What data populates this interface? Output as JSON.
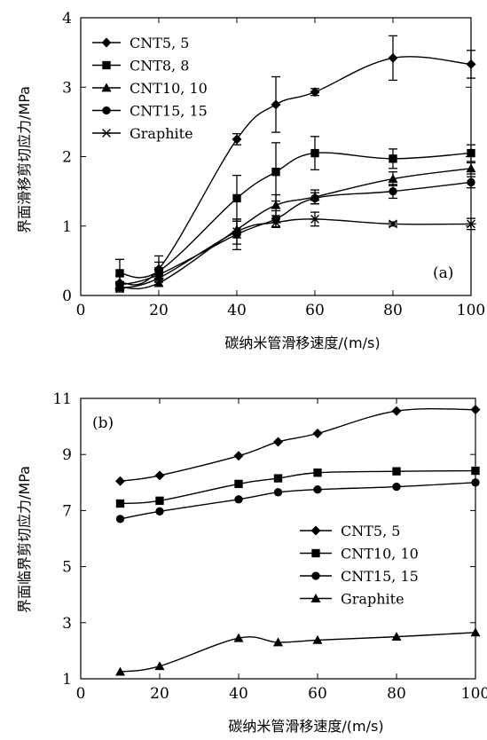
{
  "chart_data": [
    {
      "type": "line",
      "panel_label": "(a)",
      "xlabel": "碳纳米管滑移速度/(m/s)",
      "ylabel": "界面滑移剪切应力/MPa",
      "xlim": [
        0,
        100
      ],
      "ylim": [
        0,
        4
      ],
      "xticks": [
        0,
        20,
        40,
        60,
        80,
        100
      ],
      "yticks": [
        0,
        1,
        2,
        3,
        4
      ],
      "legend_position": "top-left",
      "series": [
        {
          "name": "CNT5, 5",
          "marker": "diamond",
          "x": [
            10,
            20,
            40,
            50,
            60,
            80,
            100
          ],
          "y": [
            0.18,
            0.38,
            2.25,
            2.75,
            2.93,
            3.42,
            3.33
          ],
          "err": [
            0.1,
            0.1,
            0.08,
            0.4,
            0.05,
            0.32,
            0.2
          ]
        },
        {
          "name": "CNT8, 8",
          "marker": "square",
          "x": [
            10,
            20,
            40,
            50,
            60,
            80,
            100
          ],
          "y": [
            0.32,
            0.35,
            1.4,
            1.78,
            2.05,
            1.97,
            2.05
          ],
          "err": [
            0.2,
            0.22,
            0.33,
            0.42,
            0.24,
            0.14,
            0.12
          ]
        },
        {
          "name": "CNT10, 10",
          "marker": "triangle",
          "x": [
            10,
            20,
            40,
            50,
            60,
            80,
            100
          ],
          "y": [
            0.12,
            0.18,
            0.95,
            1.3,
            1.42,
            1.68,
            1.83
          ],
          "err": [
            0.05,
            0.05,
            0.12,
            0.15,
            0.1,
            0.1,
            0.08
          ]
        },
        {
          "name": "CNT15, 15",
          "marker": "circle",
          "x": [
            10,
            20,
            40,
            50,
            60,
            80,
            100
          ],
          "y": [
            0.15,
            0.3,
            0.88,
            1.1,
            1.4,
            1.5,
            1.63
          ],
          "err": [
            0.05,
            0.06,
            0.22,
            0.12,
            0.08,
            0.1,
            0.08
          ]
        },
        {
          "name": "Graphite",
          "marker": "star",
          "x": [
            10,
            20,
            40,
            50,
            60,
            80,
            100
          ],
          "y": [
            0.1,
            0.25,
            0.92,
            1.05,
            1.1,
            1.03,
            1.03
          ],
          "err": [
            0.05,
            0.06,
            0.18,
            0.06,
            0.1,
            0.03,
            0.08
          ]
        }
      ]
    },
    {
      "type": "line",
      "panel_label": "(b)",
      "xlabel": "碳纳米管滑移速度/(m/s)",
      "ylabel": "界面临界剪切应力/MPa",
      "xlim": [
        0,
        100
      ],
      "ylim": [
        1,
        11
      ],
      "xticks": [
        0,
        20,
        40,
        60,
        80,
        100
      ],
      "yticks": [
        1,
        3,
        5,
        7,
        9,
        11
      ],
      "legend_position": "center-right",
      "series": [
        {
          "name": "CNT5, 5",
          "marker": "diamond",
          "x": [
            10,
            20,
            40,
            50,
            60,
            80,
            100
          ],
          "y": [
            8.05,
            8.25,
            8.95,
            9.45,
            9.75,
            10.55,
            10.6
          ]
        },
        {
          "name": "CNT10, 10",
          "marker": "square",
          "x": [
            10,
            20,
            40,
            50,
            60,
            80,
            100
          ],
          "y": [
            7.25,
            7.35,
            7.95,
            8.15,
            8.35,
            8.4,
            8.42
          ]
        },
        {
          "name": "CNT15, 15",
          "marker": "circle",
          "x": [
            10,
            20,
            40,
            50,
            60,
            80,
            100
          ],
          "y": [
            6.7,
            6.97,
            7.4,
            7.65,
            7.75,
            7.85,
            8.0
          ]
        },
        {
          "name": "Graphite",
          "marker": "triangle",
          "x": [
            10,
            20,
            40,
            50,
            60,
            80,
            100
          ],
          "y": [
            1.25,
            1.45,
            2.45,
            2.3,
            2.38,
            2.5,
            2.65
          ]
        }
      ]
    }
  ]
}
